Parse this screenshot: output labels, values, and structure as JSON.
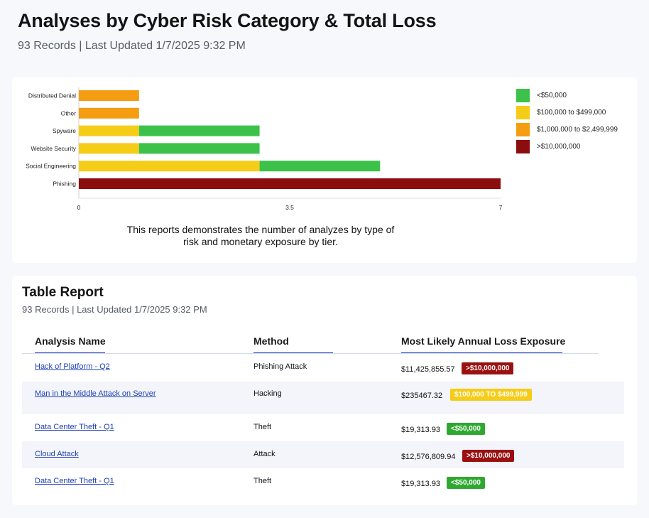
{
  "header": {
    "title": "Analyses by Cyber Risk Category & Total Loss",
    "subtitle": "93 Records | Last Updated 1/7/2025 9:32 PM"
  },
  "chart_data": {
    "type": "bar",
    "orientation": "horizontal",
    "stacked": true,
    "categories": [
      "Distributed Denial",
      "Other",
      "Spyware",
      "Website Security",
      "Social Engineering",
      "Phishing"
    ],
    "series": [
      {
        "name": "<$50,000",
        "color": "#3cc24b",
        "values": [
          0,
          0,
          2,
          2,
          2,
          0
        ]
      },
      {
        "name": "$100,000 to $499,000",
        "color": "#f5cc17",
        "values": [
          0,
          0,
          1,
          1,
          3,
          0
        ]
      },
      {
        "name": "$1,000,000 to $2,499,999",
        "color": "#f49c12",
        "values": [
          1,
          1,
          0,
          0,
          0,
          0
        ]
      },
      {
        "name": ">$10,000,000",
        "color": "#8b0d0d",
        "values": [
          0,
          0,
          0,
          0,
          0,
          7
        ]
      }
    ],
    "stack_order": [
      ">$10,000,000",
      "$1,000,000 to $2,499,999",
      "$100,000 to $499,000",
      "<$50,000"
    ],
    "xlim": [
      0,
      7
    ],
    "xticks": [
      "0",
      "3.5",
      "7"
    ],
    "legend": "right",
    "grid": false,
    "caption": "This reports demonstrates the number of analyzes by type of risk and monetary exposure by tier."
  },
  "table": {
    "title": "Table Report",
    "subtitle": "93 Records | Last Updated 1/7/2025 9:32 PM",
    "columns": [
      "Analysis Name",
      "Method",
      "Most Likely Annual Loss Exposure"
    ],
    "rows": [
      {
        "name": "Hack of Platform - Q2",
        "method": "Phishing Attack",
        "amount": "$11,425,855.57",
        "badge": ">$10,000,000",
        "badge_color": "#9b1111"
      },
      {
        "name": "Man in the Middle Attack on Server",
        "method": "Hacking",
        "amount": "$235467.32",
        "badge": "$100,000 TO $499,999",
        "badge_color": "#f5cc17"
      },
      {
        "name": "Data Center Theft - Q1",
        "method": "Theft",
        "amount": "$19,313.93",
        "badge": "<$50,000",
        "badge_color": "#2fa832"
      },
      {
        "name": "Cloud Attack",
        "method": "Attack",
        "amount": "$12,576,809.94",
        "badge": ">$10,000,000",
        "badge_color": "#9b1111"
      },
      {
        "name": "Data Center Theft - Q1",
        "method": "Theft",
        "amount": "$19,313.93",
        "badge": "<$50,000",
        "badge_color": "#2fa832"
      }
    ]
  }
}
